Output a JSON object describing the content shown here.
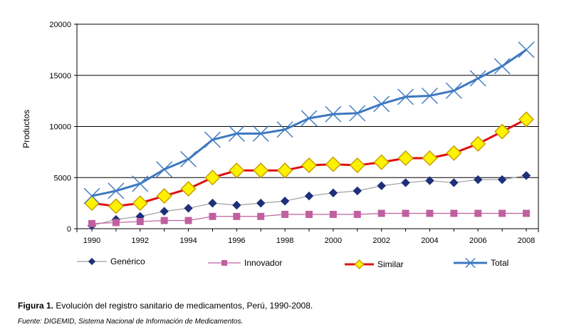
{
  "chart_data": {
    "type": "line",
    "x": [
      1990,
      1991,
      1992,
      1993,
      1994,
      1995,
      1996,
      1997,
      1998,
      1999,
      2000,
      2001,
      2002,
      2003,
      2004,
      2005,
      2006,
      2007,
      2008
    ],
    "x_tick_labels": [
      "1990",
      "1992",
      "1994",
      "1996",
      "1998",
      "2000",
      "2002",
      "2004",
      "2006",
      "2008"
    ],
    "y_tick_labels": [
      "0",
      "5000",
      "10000",
      "15000",
      "20000"
    ],
    "ylim": [
      0,
      20000
    ],
    "xlim": [
      1990,
      2008
    ],
    "ylabel": "Productos",
    "xlabel": "",
    "grid": "horizontal",
    "legend_position": "bottom",
    "series": [
      {
        "name": "Genérico",
        "color": "#A0A0A0",
        "marker": "diamond",
        "marker_color": "#1F2F7A",
        "values": [
          300,
          900,
          1200,
          1700,
          2000,
          2500,
          2300,
          2500,
          2700,
          3200,
          3500,
          3700,
          4200,
          4500,
          4700,
          4500,
          4800,
          4800,
          5200
        ]
      },
      {
        "name": "Innovador",
        "color": "#C060A0",
        "marker": "square",
        "marker_color": "#C060A0",
        "values": [
          500,
          600,
          700,
          800,
          800,
          1200,
          1200,
          1200,
          1400,
          1400,
          1400,
          1400,
          1500,
          1500,
          1500,
          1500,
          1500,
          1500,
          1500
        ]
      },
      {
        "name": "Similar",
        "color": "#E01010",
        "marker": "big-diamond",
        "marker_color": "#FFF200",
        "marker_stroke": "#C8A000",
        "values": [
          2500,
          2200,
          2500,
          3200,
          3900,
          5000,
          5700,
          5700,
          5700,
          6200,
          6300,
          6200,
          6500,
          6900,
          6900,
          7400,
          8300,
          9500,
          10700
        ]
      },
      {
        "name": "Total",
        "color": "#3C78C0",
        "marker": "x",
        "marker_color": "#3C78C0",
        "values": [
          3200,
          3700,
          4400,
          5800,
          6800,
          8700,
          9300,
          9300,
          9700,
          10800,
          11200,
          11300,
          12200,
          12900,
          13000,
          13500,
          14700,
          15900,
          17500
        ]
      }
    ]
  },
  "caption": {
    "figure_label": "Figura 1.",
    "figure_text": " Evolución del registro sanitario de medicamentos, Perú, 1990-2008.",
    "source": "Fuente: DIGEMID, Sistema Nacional de Información de Medicamentos."
  }
}
